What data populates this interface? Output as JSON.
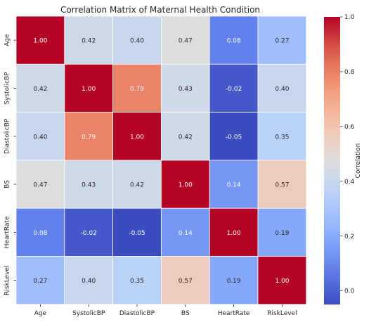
{
  "chart_data": {
    "type": "heatmap",
    "title": "Correlation Matrix of Maternal Health Condition",
    "xlabel": "",
    "ylabel": "",
    "row_labels": [
      "Age",
      "SystolicBP",
      "DiastolicBP",
      "BS",
      "HeartRate",
      "RiskLevel"
    ],
    "col_labels": [
      "Age",
      "SystolicBP",
      "DiastolicBP",
      "BS",
      "HeartRate",
      "RiskLevel"
    ],
    "values": [
      [
        1.0,
        0.42,
        0.4,
        0.47,
        0.08,
        0.27
      ],
      [
        0.42,
        1.0,
        0.79,
        0.43,
        -0.02,
        0.4
      ],
      [
        0.4,
        0.79,
        1.0,
        0.42,
        -0.05,
        0.35
      ],
      [
        0.47,
        0.43,
        0.42,
        1.0,
        0.14,
        0.57
      ],
      [
        0.08,
        -0.02,
        -0.05,
        0.14,
        1.0,
        0.19
      ],
      [
        0.27,
        0.4,
        0.35,
        0.57,
        0.19,
        1.0
      ]
    ],
    "colormap": "coolwarm",
    "vmin": -0.05,
    "vmax": 1.0,
    "annotation_format": "0.00",
    "colorbar": {
      "label": "Correlation",
      "ticks": [
        0.0,
        0.2,
        0.4,
        0.6,
        0.8,
        1.0
      ],
      "tick_labels": [
        "0.0",
        "0.2",
        "0.4",
        "0.6",
        "0.8",
        "1.0"
      ]
    },
    "cell_border_color": "#ffffff"
  }
}
